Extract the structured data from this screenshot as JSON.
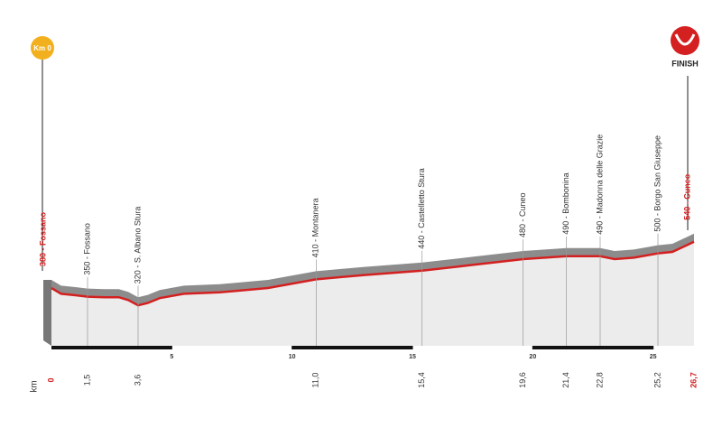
{
  "chart_data": {
    "type": "area",
    "start_badge": "Km 0",
    "finish_label": "FINISH",
    "x_axis_label": "km",
    "color": "#d42020",
    "xlim": [
      0,
      26.7
    ],
    "xticks": [
      5,
      10,
      15,
      20,
      25
    ],
    "ylim": [
      180,
      560
    ],
    "profile": {
      "x": [
        0,
        0.4,
        1.0,
        1.5,
        2.2,
        2.8,
        3.2,
        3.6,
        4.0,
        4.5,
        5.5,
        7,
        9,
        11,
        13,
        15.4,
        17.5,
        19.6,
        21.4,
        22.8,
        23.4,
        24.2,
        25.2,
        25.8,
        26.7
      ],
      "values": [
        380,
        360,
        355,
        350,
        348,
        348,
        338,
        320,
        328,
        345,
        360,
        365,
        380,
        410,
        425,
        440,
        460,
        480,
        490,
        490,
        480,
        485,
        500,
        505,
        540
      ]
    },
    "start": {
      "km": 0,
      "label": "380 - Fossano"
    },
    "finish": {
      "km": {
        "value": 26.7,
        "label": "26,7"
      },
      "label": "540 - Cuneo"
    },
    "waypoints": [
      {
        "km": {
          "value": 1.5,
          "label": "1,5"
        },
        "label": "350 - Fossano"
      },
      {
        "km": {
          "value": 3.6,
          "label": "3,6"
        },
        "label": "320 - S. Albano Stura"
      },
      {
        "km": {
          "value": 11,
          "label": "11,0"
        },
        "label": "410 - Montanera"
      },
      {
        "km": {
          "value": 15.4,
          "label": "15,4"
        },
        "label": "440 - Castelletto Stura"
      },
      {
        "km": {
          "value": 19.6,
          "label": "19,6"
        },
        "label": "480 - Cuneo"
      },
      {
        "km": {
          "value": 21.4,
          "label": "21,4"
        },
        "label": "490 - Bombonina"
      },
      {
        "km": {
          "value": 22.8,
          "label": "22,8"
        },
        "label": "490 - Madonna delle Grazie"
      },
      {
        "km": {
          "value": 25.2,
          "label": "25,2"
        },
        "label": "500 - Borgo San Giuseppe"
      }
    ]
  }
}
